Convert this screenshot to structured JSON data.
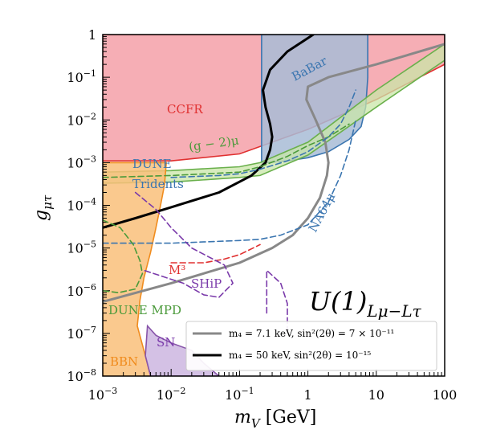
{
  "chart_data": {
    "type": "line",
    "title": "U(1)_{Lμ−Lτ}",
    "title_main": "U(1)",
    "title_sub": "Lμ−Lτ",
    "xlabel": "m_V [GeV]",
    "xlabel_main": "m",
    "xlabel_sub": "V",
    "xlabel_unit": " [GeV]",
    "ylabel": "g_μτ",
    "ylabel_main": "g",
    "ylabel_sub": "μτ",
    "xscale": "log",
    "yscale": "log",
    "xlim": [
      0.001,
      100
    ],
    "ylim": [
      1e-08,
      1
    ],
    "xticks": [
      {
        "value": 0.001,
        "base": "10",
        "exp": "−3"
      },
      {
        "value": 0.01,
        "base": "10",
        "exp": "−2"
      },
      {
        "value": 0.1,
        "base": "10",
        "exp": "−1"
      },
      {
        "value": 1,
        "base": "1",
        "exp": ""
      },
      {
        "value": 10,
        "base": "10",
        "exp": ""
      },
      {
        "value": 100,
        "base": "100",
        "exp": ""
      }
    ],
    "yticks": [
      {
        "value": 1e-08,
        "base": "10",
        "exp": "−8"
      },
      {
        "value": 1e-07,
        "base": "10",
        "exp": "−7"
      },
      {
        "value": 1e-06,
        "base": "10",
        "exp": "−6"
      },
      {
        "value": 1e-05,
        "base": "10",
        "exp": "−5"
      },
      {
        "value": 0.0001,
        "base": "10",
        "exp": "−4"
      },
      {
        "value": 0.001,
        "base": "10",
        "exp": "−3"
      },
      {
        "value": 0.01,
        "base": "10",
        "exp": "−2"
      },
      {
        "value": 0.1,
        "base": "10",
        "exp": "−1"
      },
      {
        "value": 1,
        "base": "1",
        "exp": ""
      }
    ],
    "regions": [
      {
        "name": "CCFR",
        "color": "#f4a0a8",
        "edge": "#e03030",
        "opacity": 0.85,
        "points": [
          [
            0.001,
            1
          ],
          [
            100,
            1
          ],
          [
            100,
            0.2
          ],
          [
            10,
            0.03
          ],
          [
            1,
            0.006
          ],
          [
            0.1,
            0.0016
          ],
          [
            0.01,
            0.0011
          ],
          [
            0.001,
            0.0011
          ]
        ]
      },
      {
        "name": "BaBar",
        "color": "#a8bcd6",
        "edge": "#3a75b0",
        "opacity": 0.85,
        "points": [
          [
            0.21,
            1
          ],
          [
            7.5,
            1
          ],
          [
            7.5,
            0.1
          ],
          [
            7,
            0.02
          ],
          [
            6,
            0.007
          ],
          [
            4,
            0.0035
          ],
          [
            2,
            0.0018
          ],
          [
            1,
            0.0013
          ],
          [
            0.5,
            0.0011
          ],
          [
            0.25,
            0.001
          ],
          [
            0.21,
            0.001
          ]
        ]
      },
      {
        "name": "g-2 band",
        "color": "#c9e6a8",
        "edge": "#6ab04c",
        "opacity": 0.75,
        "points": [
          [
            0.001,
            0.0006
          ],
          [
            0.01,
            0.00065
          ],
          [
            0.1,
            0.0008
          ],
          [
            0.2,
            0.001
          ],
          [
            1,
            0.003
          ],
          [
            10,
            0.05
          ],
          [
            100,
            0.6
          ],
          [
            100,
            0.25
          ],
          [
            10,
            0.02
          ],
          [
            1,
            0.0015
          ],
          [
            0.2,
            0.0005
          ],
          [
            0.1,
            0.00045
          ],
          [
            0.01,
            0.00035
          ],
          [
            0.001,
            0.00033
          ]
        ]
      },
      {
        "name": "BBN",
        "color": "#f9c07a",
        "edge": "#f08c1e",
        "opacity": 0.85,
        "points": [
          [
            0.001,
            0.001
          ],
          [
            0.0085,
            0.001
          ],
          [
            0.008,
            0.0003
          ],
          [
            0.007,
            0.0001
          ],
          [
            0.006,
            3e-05
          ],
          [
            0.005,
            8e-06
          ],
          [
            0.004,
            2e-06
          ],
          [
            0.0035,
            6e-07
          ],
          [
            0.0032,
            1.5e-07
          ],
          [
            0.0042,
            3e-08
          ],
          [
            0.005,
            1e-08
          ],
          [
            0.001,
            1e-08
          ]
        ]
      },
      {
        "name": "SN",
        "color": "#cdb6e0",
        "edge": "#8855aa",
        "opacity": 0.85,
        "points": [
          [
            0.0045,
            1.5e-07
          ],
          [
            0.006,
            9e-08
          ],
          [
            0.01,
            6e-08
          ],
          [
            0.02,
            4e-08
          ],
          [
            0.03,
            2e-08
          ],
          [
            0.05,
            1e-08
          ],
          [
            0.005,
            1e-08
          ],
          [
            0.0042,
            3e-08
          ]
        ]
      }
    ],
    "series": [
      {
        "name": "m_4 = 7.1 keV, sin²(2θ) = 7×10⁻¹¹",
        "color": "#888888",
        "width": 3,
        "style": "solid",
        "in_legend": true,
        "points": [
          [
            0.001,
            5.5e-07
          ],
          [
            0.01,
            1.5e-06
          ],
          [
            0.1,
            4.5e-06
          ],
          [
            0.3,
            1e-05
          ],
          [
            0.6,
            2e-05
          ],
          [
            1.0,
            5e-05
          ],
          [
            1.5,
            0.00015
          ],
          [
            1.9,
            0.0005
          ],
          [
            2.0,
            0.001
          ],
          [
            1.8,
            0.003
          ],
          [
            1.3,
            0.01
          ],
          [
            0.95,
            0.03
          ],
          [
            1.0,
            0.06
          ],
          [
            2,
            0.1
          ],
          [
            10,
            0.2
          ],
          [
            100,
            0.6
          ]
        ]
      },
      {
        "name": "m_4 = 50 keV, sin²(2θ) = 10⁻¹⁵",
        "color": "#000000",
        "width": 3,
        "style": "solid",
        "in_legend": true,
        "points": [
          [
            0.001,
            3e-05
          ],
          [
            0.003,
            5e-05
          ],
          [
            0.01,
            9e-05
          ],
          [
            0.05,
            0.0002
          ],
          [
            0.15,
            0.0005
          ],
          [
            0.24,
            0.001
          ],
          [
            0.28,
            0.002
          ],
          [
            0.3,
            0.004
          ],
          [
            0.28,
            0.008
          ],
          [
            0.24,
            0.02
          ],
          [
            0.22,
            0.05
          ],
          [
            0.28,
            0.15
          ],
          [
            0.5,
            0.4
          ],
          [
            1.2,
            1
          ]
        ]
      },
      {
        "name": "(g-2) central",
        "color": "#4a9a3a",
        "width": 1.6,
        "style": "dashed",
        "in_legend": false,
        "points": [
          [
            0.001,
            0.00045
          ],
          [
            0.01,
            0.0005
          ],
          [
            0.1,
            0.0006
          ],
          [
            0.2,
            0.0008
          ],
          [
            0.5,
            0.0014
          ],
          [
            1,
            0.0025
          ],
          [
            2,
            0.004
          ],
          [
            4,
            0.008
          ]
        ]
      },
      {
        "name": "DUNE Tridents",
        "color": "#3a75b0",
        "width": 1.6,
        "style": "dashed",
        "in_legend": false,
        "points": [
          [
            0.01,
            0.00045
          ],
          [
            0.05,
            0.0005
          ],
          [
            0.1,
            0.00055
          ],
          [
            0.2,
            0.0007
          ],
          [
            0.5,
            0.0011
          ],
          [
            1,
            0.0018
          ],
          [
            2,
            0.004
          ],
          [
            3,
            0.008
          ],
          [
            4,
            0.02
          ],
          [
            5,
            0.05
          ]
        ]
      },
      {
        "name": "NA64μ",
        "color": "#3a75b0",
        "width": 1.6,
        "style": "dashed",
        "in_legend": false,
        "points": [
          [
            0.001,
            1.3e-05
          ],
          [
            0.01,
            1.3e-05
          ],
          [
            0.1,
            1.5e-05
          ],
          [
            0.2,
            1.6e-05
          ],
          [
            0.4,
            2e-05
          ],
          [
            1,
            3.5e-05
          ],
          [
            2,
            0.00012
          ],
          [
            3,
            0.0005
          ],
          [
            4,
            0.002
          ],
          [
            5,
            0.01
          ]
        ]
      },
      {
        "name": "M3",
        "color": "#e03030",
        "width": 1.6,
        "style": "dashed",
        "in_legend": false,
        "points": [
          [
            0.01,
            4.5e-06
          ],
          [
            0.03,
            4.5e-06
          ],
          [
            0.06,
            5.5e-06
          ],
          [
            0.1,
            7e-06
          ],
          [
            0.2,
            1.2e-05
          ]
        ]
      },
      {
        "name": "SHiP",
        "color": "#7a3aaa",
        "width": 1.6,
        "style": "dashed",
        "in_legend": false,
        "points": [
          [
            0.003,
            0.0002
          ],
          [
            0.006,
            8e-05
          ],
          [
            0.01,
            3e-05
          ],
          [
            0.02,
            1e-05
          ],
          [
            0.06,
            4e-06
          ],
          [
            0.08,
            1.5e-06
          ],
          [
            0.05,
            7e-07
          ],
          [
            0.03,
            8e-07
          ],
          [
            0.015,
            1.5e-06
          ],
          [
            0.004,
            3e-06
          ]
        ]
      },
      {
        "name": "SHiP lower",
        "color": "#7a3aaa",
        "width": 1.6,
        "style": "dashed",
        "in_legend": false,
        "points": [
          [
            0.25,
            3e-07
          ],
          [
            0.25,
            3e-06
          ],
          [
            0.4,
            1.5e-06
          ],
          [
            0.5,
            5e-07
          ],
          [
            0.5,
            1e-07
          ]
        ]
      },
      {
        "name": "DUNE MPD",
        "color": "#4a9a3a",
        "width": 1.6,
        "style": "dashed",
        "in_legend": false,
        "points": [
          [
            0.001,
            4.5e-05
          ],
          [
            0.0018,
            3e-05
          ],
          [
            0.0028,
            1.2e-05
          ],
          [
            0.0035,
            5e-06
          ],
          [
            0.0038,
            2.5e-06
          ],
          [
            0.003,
            1.1e-06
          ],
          [
            0.0017,
            9e-07
          ],
          [
            0.001,
            1e-06
          ]
        ]
      }
    ],
    "labels": [
      {
        "id": "ccfr",
        "text": "CCFR",
        "color": "#e03030"
      },
      {
        "id": "babar",
        "text": "BaBar",
        "color": "#3a75b0"
      },
      {
        "id": "g2",
        "text": "(g − 2)μ",
        "color": "#4a9a3a"
      },
      {
        "id": "dune_tridents_1",
        "text": "DUNE",
        "color": "#3a75b0"
      },
      {
        "id": "dune_tridents_2",
        "text": "Tridents",
        "color": "#3a75b0"
      },
      {
        "id": "na64",
        "text": "NA64μ",
        "color": "#3a75b0"
      },
      {
        "id": "m3",
        "text": "M³",
        "color": "#e03030"
      },
      {
        "id": "ship",
        "text": "SHiP",
        "color": "#7a3aaa"
      },
      {
        "id": "dune_mpd",
        "text": "DUNE MPD",
        "color": "#4a9a3a"
      },
      {
        "id": "sn",
        "text": "SN",
        "color": "#7a3aaa"
      },
      {
        "id": "bbn",
        "text": "BBN",
        "color": "#f08c1e"
      }
    ],
    "legend": {
      "placement": "lower-right",
      "entries": [
        {
          "text": "m₄ = 7.1 keV,  sin²(2θ) = 7 × 10⁻¹¹",
          "color": "#888888"
        },
        {
          "text": "m₄ = 50 keV,  sin²(2θ) = 10⁻¹⁵",
          "color": "#000000"
        }
      ]
    }
  }
}
